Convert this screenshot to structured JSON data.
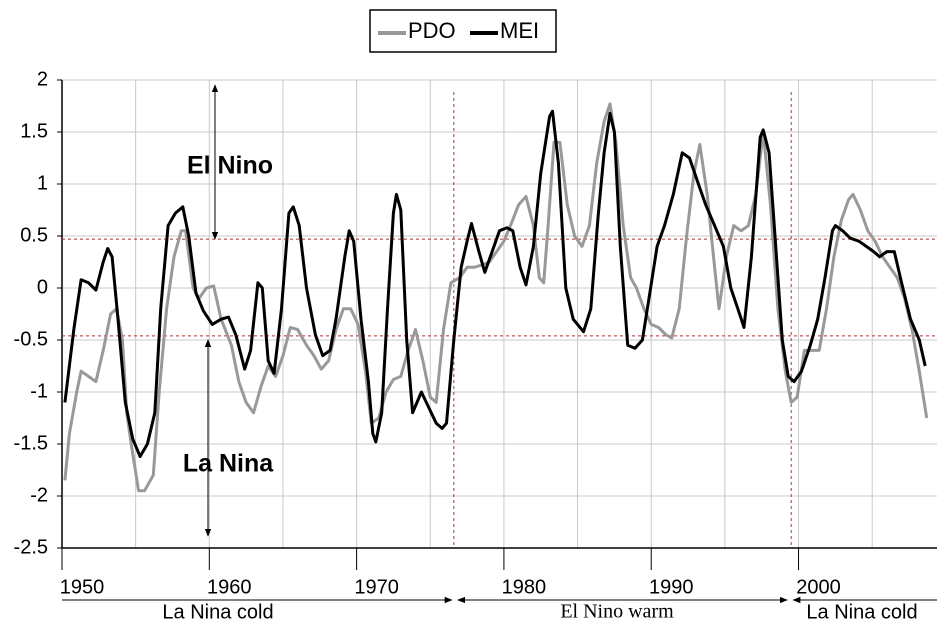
{
  "chart_data": {
    "type": "line",
    "xlim": [
      1950,
      2009.4
    ],
    "ylim": [
      -2.5,
      2
    ],
    "xticks": [
      1950,
      1960,
      1970,
      1980,
      1990,
      2000
    ],
    "x_minor_ticks": [
      1955,
      1965,
      1975,
      1985,
      1995,
      2005
    ],
    "yticks": [
      -2.5,
      -2,
      -1.5,
      -1,
      -0.5,
      0,
      0.5,
      1,
      1.5,
      2
    ],
    "grid": true,
    "reference_lines": {
      "y": [
        0.47,
        -0.46
      ],
      "x": [
        1976.6,
        1999.5
      ],
      "color": "#b03030"
    },
    "annotations": [
      "El Nino",
      "La Nina",
      "La Nina cold",
      "El Nino warm",
      "La Nina cold"
    ],
    "series": [
      {
        "name": "PDO",
        "color": "#999999",
        "x": [
          1950.2,
          1950.5,
          1951.0,
          1951.3,
          1951.8,
          1952.3,
          1952.8,
          1953.3,
          1953.7,
          1954.1,
          1954.4,
          1954.7,
          1955.2,
          1955.6,
          1956.2,
          1956.6,
          1957.1,
          1957.6,
          1958.1,
          1958.4,
          1958.9,
          1959.3,
          1959.8,
          1960.3,
          1960.8,
          1961.5,
          1962.0,
          1962.5,
          1963.0,
          1963.5,
          1964.0,
          1964.5,
          1965.0,
          1965.5,
          1966.0,
          1966.6,
          1967.1,
          1967.6,
          1968.1,
          1968.6,
          1969.1,
          1969.6,
          1970.1,
          1970.6,
          1971.0,
          1971.5,
          1972.0,
          1972.5,
          1973.0,
          1973.5,
          1974.0,
          1974.5,
          1975.0,
          1975.4,
          1975.9,
          1976.4,
          1977.0,
          1977.5,
          1978.0,
          1978.5,
          1979.0,
          1979.5,
          1980.0,
          1980.5,
          1981.0,
          1981.5,
          1982.0,
          1982.4,
          1982.7,
          1983.0,
          1983.4,
          1983.8,
          1984.3,
          1984.8,
          1985.3,
          1985.8,
          1986.3,
          1986.8,
          1987.2,
          1987.6,
          1988.1,
          1988.6,
          1989.0,
          1989.5,
          1990.0,
          1990.5,
          1991.0,
          1991.4,
          1991.9,
          1992.4,
          1992.9,
          1993.3,
          1993.8,
          1994.3,
          1994.6,
          1995.1,
          1995.6,
          1996.1,
          1996.6,
          1997.1,
          1997.6,
          1998.1,
          1998.6,
          1999.1,
          1999.5,
          1999.9,
          2000.4,
          2000.9,
          2001.4,
          2001.9,
          2002.4,
          2002.9,
          2003.4,
          2003.7,
          2004.2,
          2004.7,
          2005.2,
          2005.7,
          2006.2,
          2006.7,
          2007.2,
          2007.7,
          2008.2,
          2008.7
        ],
        "values": [
          -1.85,
          -1.4,
          -1.0,
          -0.8,
          -0.85,
          -0.9,
          -0.6,
          -0.25,
          -0.2,
          -0.5,
          -1.2,
          -1.5,
          -1.95,
          -1.95,
          -1.8,
          -1.0,
          -0.2,
          0.3,
          0.55,
          0.55,
          0.0,
          -0.1,
          0.0,
          0.02,
          -0.3,
          -0.55,
          -0.9,
          -1.1,
          -1.2,
          -0.95,
          -0.75,
          -0.85,
          -0.65,
          -0.38,
          -0.4,
          -0.55,
          -0.65,
          -0.78,
          -0.7,
          -0.4,
          -0.2,
          -0.2,
          -0.35,
          -0.8,
          -1.3,
          -1.25,
          -1.0,
          -0.88,
          -0.85,
          -0.6,
          -0.4,
          -0.7,
          -1.05,
          -1.1,
          -0.4,
          0.05,
          0.1,
          0.2,
          0.2,
          0.22,
          0.25,
          0.35,
          0.45,
          0.62,
          0.8,
          0.88,
          0.6,
          0.1,
          0.05,
          0.6,
          1.4,
          1.4,
          0.8,
          0.5,
          0.4,
          0.6,
          1.2,
          1.6,
          1.77,
          1.4,
          0.6,
          0.1,
          0.0,
          -0.2,
          -0.35,
          -0.38,
          -0.45,
          -0.48,
          -0.2,
          0.5,
          1.1,
          1.38,
          0.9,
          0.2,
          -0.2,
          0.3,
          0.6,
          0.55,
          0.6,
          0.9,
          1.5,
          0.8,
          -0.2,
          -0.8,
          -1.1,
          -1.05,
          -0.6,
          -0.6,
          -0.6,
          -0.2,
          0.3,
          0.65,
          0.85,
          0.9,
          0.75,
          0.55,
          0.45,
          0.3,
          0.2,
          0.1,
          -0.1,
          -0.4,
          -0.8,
          -1.25
        ]
      },
      {
        "name": "MEI",
        "color": "#000000",
        "x": [
          1950.2,
          1950.8,
          1951.3,
          1951.8,
          1952.3,
          1952.8,
          1953.1,
          1953.4,
          1953.8,
          1954.3,
          1954.8,
          1955.3,
          1955.8,
          1956.3,
          1956.7,
          1957.2,
          1957.7,
          1958.2,
          1958.6,
          1959.1,
          1959.6,
          1960.2,
          1960.8,
          1961.3,
          1961.8,
          1962.4,
          1962.8,
          1963.3,
          1963.6,
          1964.0,
          1964.4,
          1964.9,
          1965.4,
          1965.7,
          1966.1,
          1966.6,
          1967.2,
          1967.7,
          1968.2,
          1968.6,
          1969.2,
          1969.5,
          1969.8,
          1970.3,
          1970.8,
          1971.1,
          1971.3,
          1971.7,
          1972.1,
          1972.5,
          1972.7,
          1973.0,
          1973.4,
          1973.8,
          1974.4,
          1974.9,
          1975.4,
          1975.8,
          1976.1,
          1976.6,
          1977.1,
          1977.5,
          1977.8,
          1978.3,
          1978.7,
          1979.2,
          1979.7,
          1980.2,
          1980.6,
          1981.1,
          1981.5,
          1982.0,
          1982.5,
          1983.1,
          1983.3,
          1983.7,
          1984.2,
          1984.7,
          1985.4,
          1985.9,
          1986.4,
          1986.8,
          1987.2,
          1987.5,
          1987.9,
          1988.4,
          1988.9,
          1989.4,
          1989.9,
          1990.4,
          1990.9,
          1991.5,
          1992.1,
          1992.6,
          1993.2,
          1993.7,
          1994.3,
          1994.9,
          1995.4,
          1996.0,
          1996.3,
          1996.8,
          1997.4,
          1997.6,
          1998.0,
          1998.4,
          1998.9,
          1999.3,
          1999.7,
          2000.2,
          2000.8,
          2001.3,
          2001.8,
          2002.3,
          2002.5,
          2003.0,
          2003.5,
          2004.1,
          2004.6,
          2005.1,
          2005.5,
          2006.0,
          2006.5,
          2007.0,
          2007.6,
          2008.2,
          2008.6
        ],
        "values": [
          -1.1,
          -0.4,
          0.08,
          0.05,
          -0.02,
          0.25,
          0.38,
          0.3,
          -0.3,
          -1.1,
          -1.45,
          -1.62,
          -1.5,
          -1.2,
          -0.2,
          0.6,
          0.72,
          0.78,
          0.5,
          -0.05,
          -0.22,
          -0.35,
          -0.3,
          -0.28,
          -0.45,
          -0.78,
          -0.6,
          0.05,
          0.0,
          -0.7,
          -0.82,
          -0.2,
          0.72,
          0.78,
          0.6,
          0.0,
          -0.45,
          -0.65,
          -0.6,
          -0.3,
          0.3,
          0.55,
          0.45,
          -0.3,
          -0.9,
          -1.4,
          -1.48,
          -1.2,
          -0.2,
          0.72,
          0.9,
          0.75,
          -0.5,
          -1.2,
          -1.0,
          -1.15,
          -1.3,
          -1.35,
          -1.3,
          -0.5,
          0.2,
          0.45,
          0.62,
          0.35,
          0.15,
          0.35,
          0.55,
          0.58,
          0.55,
          0.2,
          0.03,
          0.4,
          1.1,
          1.65,
          1.7,
          1.2,
          0.0,
          -0.3,
          -0.42,
          -0.2,
          0.7,
          1.3,
          1.68,
          1.5,
          0.4,
          -0.55,
          -0.58,
          -0.5,
          -0.05,
          0.4,
          0.6,
          0.9,
          1.3,
          1.25,
          1.0,
          0.8,
          0.6,
          0.4,
          0.0,
          -0.25,
          -0.38,
          0.3,
          1.45,
          1.52,
          1.3,
          0.5,
          -0.5,
          -0.85,
          -0.9,
          -0.8,
          -0.55,
          -0.3,
          0.1,
          0.55,
          0.6,
          0.55,
          0.48,
          0.45,
          0.4,
          0.35,
          0.3,
          0.35,
          0.35,
          0.05,
          -0.3,
          -0.5,
          -0.75
        ]
      }
    ]
  }
}
